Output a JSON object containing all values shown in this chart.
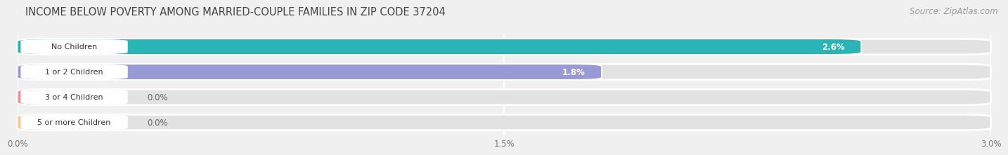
{
  "title": "INCOME BELOW POVERTY AMONG MARRIED-COUPLE FAMILIES IN ZIP CODE 37204",
  "source": "Source: ZipAtlas.com",
  "categories": [
    "No Children",
    "1 or 2 Children",
    "3 or 4 Children",
    "5 or more Children"
  ],
  "values": [
    2.6,
    1.8,
    0.0,
    0.0
  ],
  "bar_colors": [
    "#29b5b5",
    "#9999d6",
    "#f09090",
    "#f5c98a"
  ],
  "value_labels": [
    "2.6%",
    "1.8%",
    "0.0%",
    "0.0%"
  ],
  "xlim_max": 3.0,
  "xticks": [
    0.0,
    1.5,
    3.0
  ],
  "xticklabels": [
    "0.0%",
    "1.5%",
    "3.0%"
  ],
  "bar_height": 0.62,
  "background_color": "#f0f0f0",
  "bar_bg_color": "#e2e2e2",
  "title_fontsize": 10.5,
  "source_fontsize": 8.5,
  "label_box_color": "white",
  "bar_gap": 0.38
}
